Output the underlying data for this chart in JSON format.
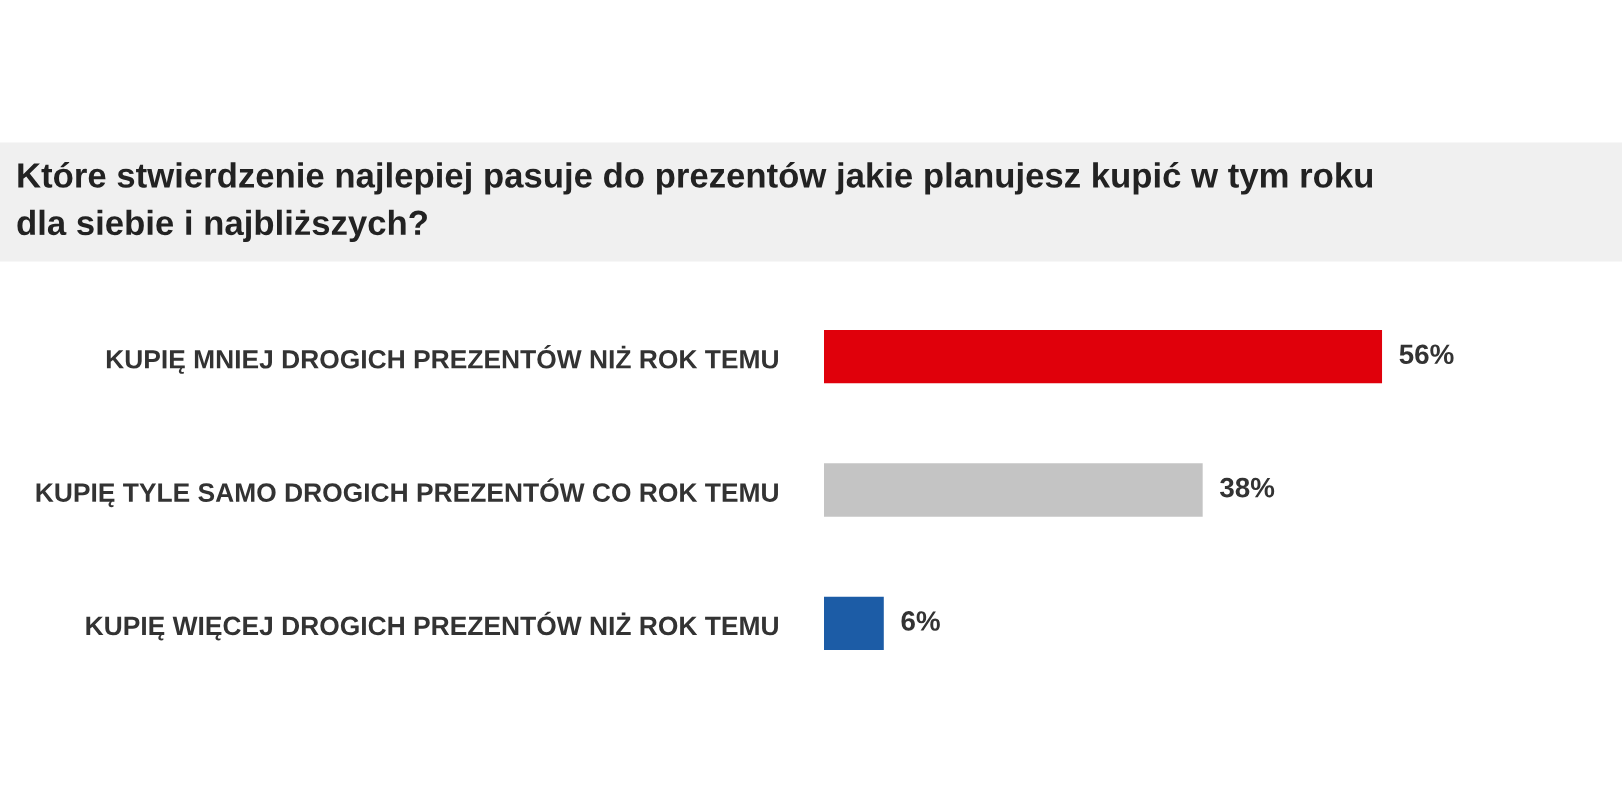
{
  "chart_data": {
    "type": "bar",
    "orientation": "horizontal",
    "title": "Które stwierdzenie najlepiej pasuje do prezentów jakie planujesz kupić w tym roku\ndla siebie i najbliższych?",
    "categories": [
      "KUPIĘ MNIEJ DROGICH PREZENTÓW NIŻ ROK TEMU",
      "KUPIĘ TYLE SAMO DROGICH PREZENTÓW CO ROK TEMU",
      "KUPIĘ WIĘCEJ DROGICH PREZENTÓW NIŻ ROK TEMU"
    ],
    "values": [
      56,
      38,
      6
    ],
    "colors": [
      "#e0000b",
      "#c4c4c4",
      "#1c5ca6"
    ],
    "value_labels": [
      "56%",
      "38%",
      "6%"
    ],
    "grid": false,
    "legend": false,
    "tick_labels": "y"
  }
}
